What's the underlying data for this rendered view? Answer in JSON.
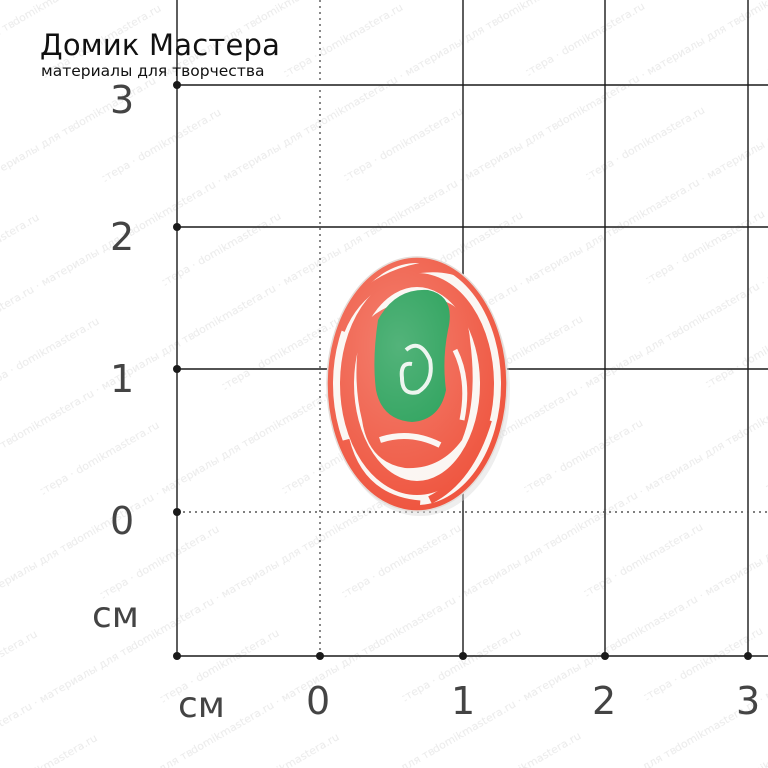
{
  "brand": {
    "title": "Домик Мастера",
    "subtitle": "материалы для творчества"
  },
  "watermark": {
    "text": "domikmastera.ru · материалы для творчества · Домик Мастера"
  },
  "ruler": {
    "unit": "см",
    "y_ticks": [
      "3",
      "2",
      "1",
      "0"
    ],
    "x_ticks": [
      "0",
      "1",
      "2",
      "3"
    ],
    "y_unit_label": "см",
    "x_unit_label": "см"
  },
  "cabochon": {
    "description_colors": {
      "red": "#ef5640",
      "green": "#1a9a4e",
      "white": "#fbf6f2"
    }
  },
  "colors": {
    "grid_line": "#1a1a1a",
    "dotted_line": "#555555",
    "label_gray": "#444444"
  }
}
